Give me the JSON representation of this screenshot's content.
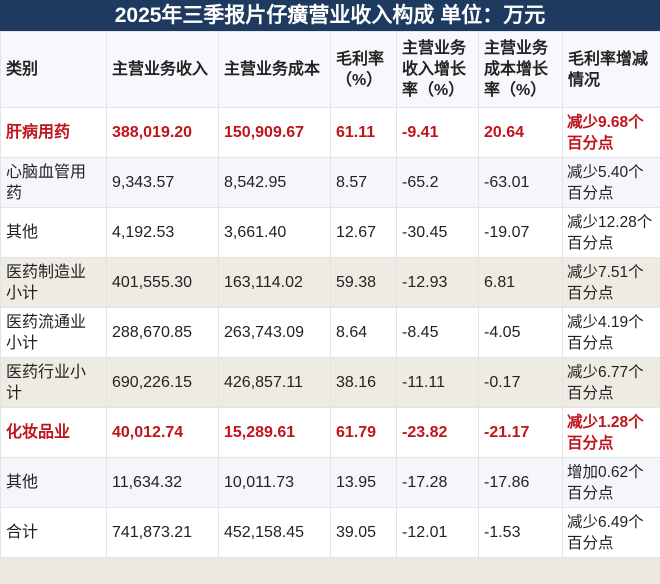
{
  "title": "2025年三季报片仔癀营业收入构成 单位：万元",
  "colors": {
    "title_bg": "#1F3A5F",
    "highlight": "#C0141B",
    "row_beige": "#EEEBE3",
    "row_light": "#F5F6FA",
    "page_bg": "#ECE9E1"
  },
  "table": {
    "headers": [
      "类别",
      "主营业务收入",
      "主营业务成本",
      "毛利率（%）",
      "主营业务收入增长率（%）",
      "主营业务成本增长率（%）",
      "毛利率增减情况"
    ],
    "rows": [
      {
        "category": "肝病用药",
        "revenue": "388,019.20",
        "cost": "150,909.67",
        "gross_margin": "61.11",
        "revenue_growth": "-9.41",
        "cost_growth": "20.64",
        "margin_change": "减少9.68个百分点",
        "highlight": true,
        "style": "white"
      },
      {
        "category": "心脑血管用药",
        "revenue": "9,343.57",
        "cost": "8,542.95",
        "gross_margin": "8.57",
        "revenue_growth": "-65.2",
        "cost_growth": "-63.01",
        "margin_change": "减少5.40个百分点",
        "highlight": false,
        "style": "light"
      },
      {
        "category": "其他",
        "revenue": "4,192.53",
        "cost": "3,661.40",
        "gross_margin": "12.67",
        "revenue_growth": "-30.45",
        "cost_growth": "-19.07",
        "margin_change": "减少12.28个百分点",
        "highlight": false,
        "style": "white"
      },
      {
        "category": "医药制造业小计",
        "revenue": "401,555.30",
        "cost": "163,114.02",
        "gross_margin": "59.38",
        "revenue_growth": "-12.93",
        "cost_growth": "6.81",
        "margin_change": "减少7.51个百分点",
        "highlight": false,
        "style": "beige"
      },
      {
        "category": "医药流通业小计",
        "revenue": "288,670.85",
        "cost": "263,743.09",
        "gross_margin": "8.64",
        "revenue_growth": "-8.45",
        "cost_growth": "-4.05",
        "margin_change": "减少4.19个百分点",
        "highlight": false,
        "style": "white"
      },
      {
        "category": "医药行业小计",
        "revenue": "690,226.15",
        "cost": "426,857.11",
        "gross_margin": "38.16",
        "revenue_growth": "-11.11",
        "cost_growth": "-0.17",
        "margin_change": "减少6.77个百分点",
        "highlight": false,
        "style": "beige"
      },
      {
        "category": "化妆品业",
        "revenue": "40,012.74",
        "cost": "15,289.61",
        "gross_margin": "61.79",
        "revenue_growth": "-23.82",
        "cost_growth": "-21.17",
        "margin_change": "减少1.28个百分点",
        "highlight": true,
        "style": "white"
      },
      {
        "category": "其他",
        "revenue": "11,634.32",
        "cost": "10,011.73",
        "gross_margin": "13.95",
        "revenue_growth": "-17.28",
        "cost_growth": "-17.86",
        "margin_change": "增加0.62个百分点",
        "highlight": false,
        "style": "light"
      },
      {
        "category": "合计",
        "revenue": "741,873.21",
        "cost": "452,158.45",
        "gross_margin": "39.05",
        "revenue_growth": "-12.01",
        "cost_growth": "-1.53",
        "margin_change": "减少6.49个百分点",
        "highlight": false,
        "style": "white"
      }
    ]
  }
}
